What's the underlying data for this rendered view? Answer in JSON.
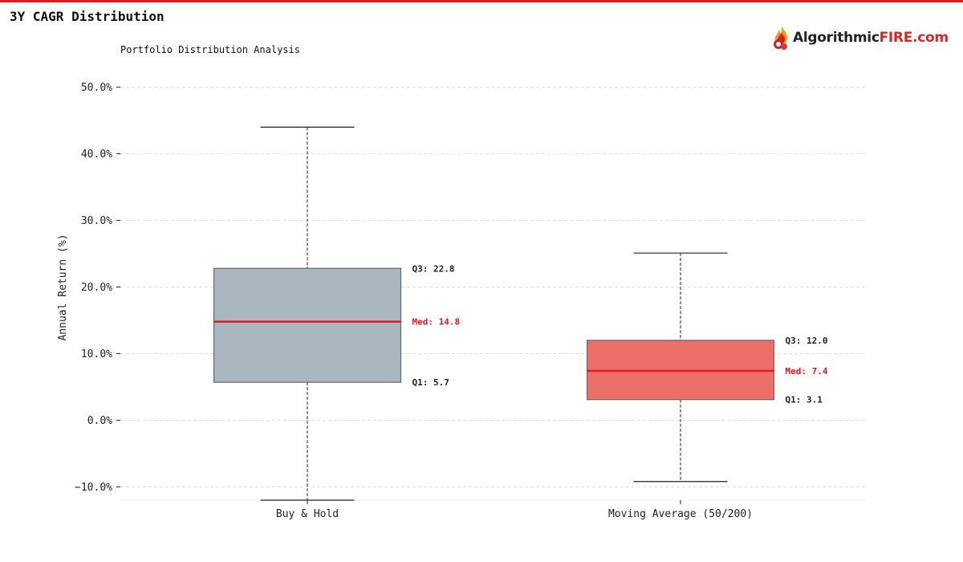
{
  "page": {
    "title": "3Y CAGR Distribution",
    "subtitle": "Portfolio Distribution Analysis",
    "brand": {
      "part1": "Algorithmic",
      "part2": "FIRE",
      "part3": ".com"
    },
    "accent_color": "#e5191c"
  },
  "chart_data": {
    "type": "box",
    "title": "Portfolio Distribution Analysis",
    "ylabel": "Annual Return (%)",
    "xlabel": "",
    "ylim": [
      -12,
      52
    ],
    "yticks": [
      -10,
      0,
      10,
      20,
      30,
      40,
      50
    ],
    "ytick_labels": [
      "−10.0%",
      "0.0%",
      "10.0%",
      "20.0%",
      "30.0%",
      "40.0%",
      "50.0%"
    ],
    "grid": true,
    "categories": [
      "Buy & Hold",
      "Moving Average (50/200)"
    ],
    "boxes": [
      {
        "category": "Buy & Hold",
        "whisker_low": -12,
        "q1": 5.7,
        "median": 14.8,
        "q3": 22.8,
        "whisker_high": 44,
        "color": "#a9b7be",
        "labels": {
          "q3": "Q3: 22.8",
          "median": "Med: 14.8",
          "q1": "Q1: 5.7"
        }
      },
      {
        "category": "Moving Average (50/200)",
        "whisker_low": -9.2,
        "q1": 3.1,
        "median": 7.4,
        "q3": 12.0,
        "whisker_high": 25.1,
        "color": "#ec6e68",
        "labels": {
          "q3": "Q3: 12.0",
          "median": "Med: 7.4",
          "q1": "Q1: 3.1"
        }
      }
    ],
    "median_color": "#e5191c",
    "annotation_color": "#222222"
  }
}
